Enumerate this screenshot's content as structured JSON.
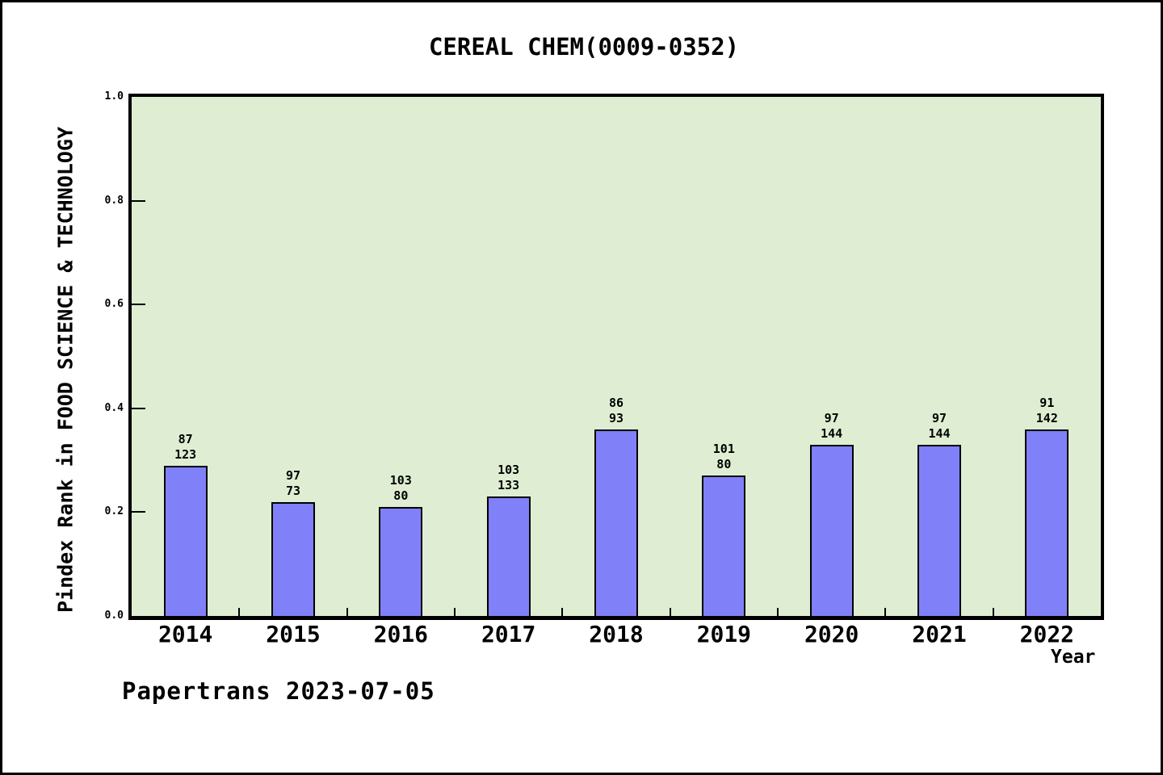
{
  "title": "CEREAL CHEM(0009-0352)",
  "footer": "Papertrans 2023-07-05",
  "chart_data": {
    "type": "bar",
    "title": "CEREAL CHEM(0009-0352)",
    "xlabel": "Year",
    "ylabel": "Pindex Rank in FOOD SCIENCE & TECHNOLOGY",
    "categories": [
      "2014",
      "2015",
      "2016",
      "2017",
      "2018",
      "2019",
      "2020",
      "2021",
      "2022"
    ],
    "values": [
      0.29,
      0.22,
      0.21,
      0.23,
      0.36,
      0.27,
      0.33,
      0.33,
      0.36
    ],
    "bar_value_labels": [
      [
        "87",
        "123"
      ],
      [
        "97",
        "73"
      ],
      [
        "103",
        "80"
      ],
      [
        "103",
        "133"
      ],
      [
        "86",
        "93"
      ],
      [
        "101",
        "80"
      ],
      [
        "97",
        "144"
      ],
      [
        "97",
        "144"
      ],
      [
        "91",
        "142"
      ]
    ],
    "ylim": [
      0.0,
      1.0
    ],
    "yticks": [
      0.0,
      0.2,
      0.4,
      0.6,
      0.8,
      1.0
    ],
    "grid": false,
    "legend": null,
    "colors": {
      "bar_fill": "#8080f8",
      "bar_edge": "#000000",
      "plot_bg": "#dfeed2",
      "page_bg": "#ffffff",
      "axis": "#000000",
      "text": "#000000"
    }
  }
}
